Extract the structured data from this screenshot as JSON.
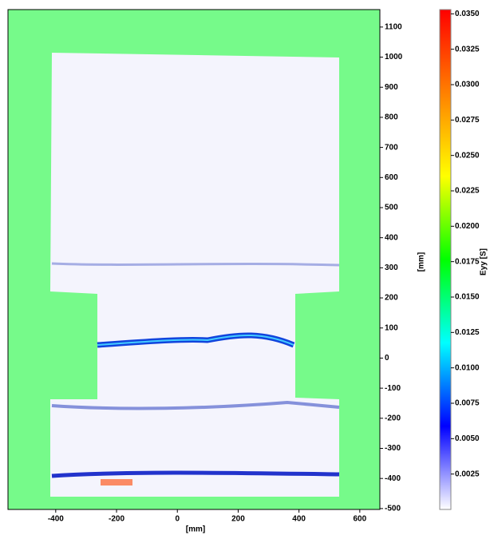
{
  "chart_data": {
    "type": "heatmap",
    "xlabel": "[mm]",
    "ylabel": "[mm]",
    "colorbar_label": "Eyy [S]",
    "xlim": [
      -557,
      666
    ],
    "ylim": [
      -503,
      1158
    ],
    "xticks": [
      -400,
      -200,
      0,
      200,
      400,
      600
    ],
    "yticks": [
      -500,
      -400,
      -300,
      -200,
      -100,
      0,
      100,
      200,
      300,
      400,
      500,
      600,
      700,
      800,
      900,
      1000,
      1100
    ],
    "clim": [
      0,
      0.0353
    ],
    "cticks": [
      {
        "value": 0.035,
        "label": "0.0350"
      },
      0.0325,
      {
        "value": 0.03,
        "label": "0.0300"
      },
      0.0275,
      {
        "value": 0.025,
        "label": "0.0250"
      },
      0.0225,
      {
        "value": 0.02,
        "label": "0.0200"
      },
      0.0175,
      {
        "value": 0.015,
        "label": "0.0150"
      },
      0.0125,
      {
        "value": 0.01,
        "label": "0.0100"
      },
      0.0075,
      {
        "value": 0.005,
        "label": "0.0050"
      },
      0.0025
    ],
    "colormap": [
      "#ffffff",
      "#0000ff",
      "#00ffff",
      "#00ff00",
      "#ffff00",
      "#ff8000",
      "#ff0000"
    ],
    "background": "#76fa8a"
  }
}
